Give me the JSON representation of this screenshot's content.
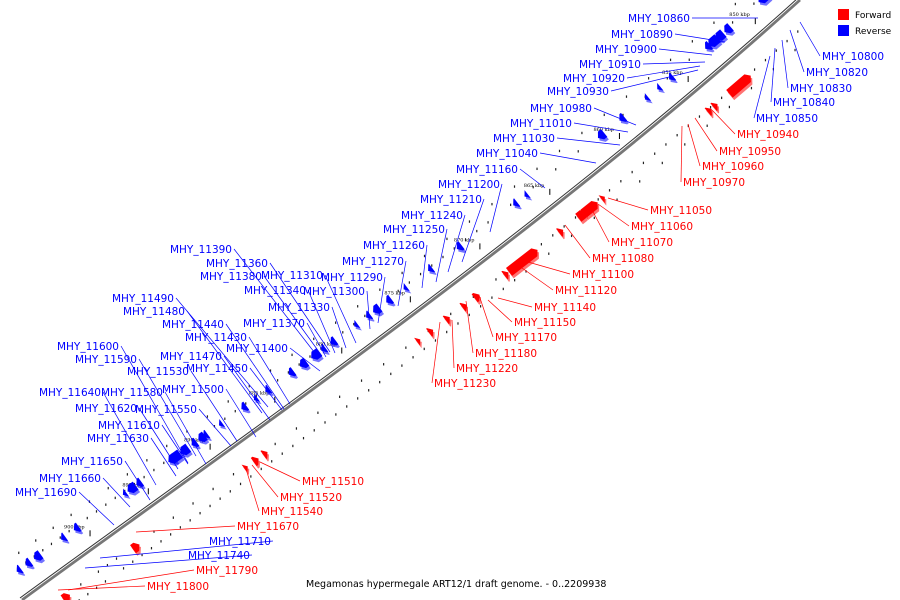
{
  "legend": {
    "forward_label": "Forward",
    "reverse_label": "Reverse",
    "forward_color": "#ff0000",
    "reverse_color": "#0000ff"
  },
  "caption": "Megamonas hypermegale ART12/1 draft genome. - 0..2209938",
  "axis_ticks": [
    "850 kbp",
    "855 kbp",
    "860 kbp",
    "865 kbp",
    "870 kbp",
    "875 kbp",
    "880 kbp",
    "885 kbp",
    "890 kbp",
    "895 kbp",
    "900 kbp"
  ],
  "reverse_genes": [
    "MHY_10860",
    "MHY_10890",
    "MHY_10900",
    "MHY_10910",
    "MHY_10920",
    "MHY_10930",
    "MHY_10980",
    "MHY_11010",
    "MHY_11030",
    "MHY_11040",
    "MHY_11160",
    "MHY_11200",
    "MHY_11210",
    "MHY_11240",
    "MHY_11250",
    "MHY_11260",
    "MHY_11270",
    "MHY_11290",
    "MHY_11300",
    "MHY_11310",
    "MHY_11390",
    "MHY_11360",
    "MHY_11380",
    "MHY_11340",
    "MHY_11330",
    "MHY_11370",
    "MHY_11400",
    "MHY_11490",
    "MHY_11480",
    "MHY_11440",
    "MHY_11430",
    "MHY_11470",
    "MHY_11450",
    "MHY_11600",
    "MHY_11590",
    "MHY_11530",
    "MHY_11500",
    "MHY_11640",
    "MHY_11580",
    "MHY_11620",
    "MHY_11550",
    "MHY_11610",
    "MHY_11630",
    "MHY_11650",
    "MHY_11660",
    "MHY_11690",
    "MHY_11710",
    "MHY_11740",
    "MHY_10800",
    "MHY_10820",
    "MHY_10830",
    "MHY_10840",
    "MHY_10850"
  ],
  "forward_genes": [
    "MHY_10940",
    "MHY_10950",
    "MHY_10960",
    "MHY_10970",
    "MHY_11050",
    "MHY_11060",
    "MHY_11070",
    "MHY_11080",
    "MHY_11100",
    "MHY_11120",
    "MHY_11140",
    "MHY_11150",
    "MHY_11170",
    "MHY_11180",
    "MHY_11220",
    "MHY_11230",
    "MHY_11510",
    "MHY_11520",
    "MHY_11540",
    "MHY_11670",
    "MHY_11790",
    "MHY_11800"
  ]
}
